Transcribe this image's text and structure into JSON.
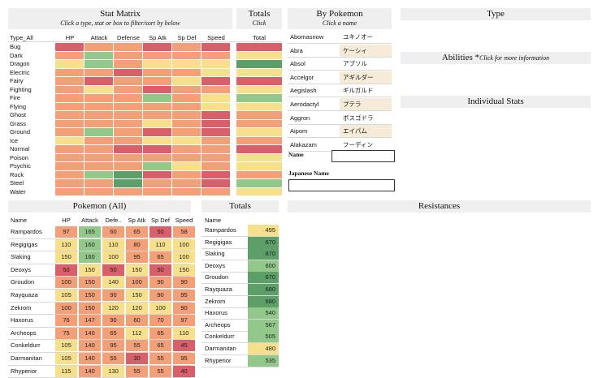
{
  "colors": {
    "red": "#d95f6b",
    "orange": "#f3a078",
    "yellow": "#f7e08c",
    "lightgreen": "#92c98a",
    "green": "#5c9f68"
  },
  "stat_matrix": {
    "title": "Stat Matrix",
    "subtitle": "Click a type, stat or box to filter/sort by below",
    "columns": [
      "Type_All",
      "HP",
      "Attack",
      "Defense",
      "Sp Atk",
      "Sp Def",
      "Speed"
    ],
    "rows": [
      {
        "type": "Bug",
        "cells": [
          "red",
          "orange",
          "orange",
          "red",
          "orange",
          "red"
        ]
      },
      {
        "type": "Dark",
        "cells": [
          "orange",
          "lightgreen",
          "orange",
          "orange",
          "orange",
          "orange"
        ]
      },
      {
        "type": "Dragon",
        "cells": [
          "yellow",
          "lightgreen",
          "orange",
          "yellow",
          "yellow",
          "yellow"
        ]
      },
      {
        "type": "Electric",
        "cells": [
          "orange",
          "orange",
          "red",
          "orange",
          "orange",
          "yellow"
        ]
      },
      {
        "type": "Fairy",
        "cells": [
          "orange",
          "red",
          "orange",
          "orange",
          "yellow",
          "red"
        ]
      },
      {
        "type": "Fighting",
        "cells": [
          "orange",
          "yellow",
          "orange",
          "red",
          "orange",
          "orange"
        ]
      },
      {
        "type": "Fire",
        "cells": [
          "orange",
          "orange",
          "orange",
          "lightgreen",
          "orange",
          "yellow"
        ]
      },
      {
        "type": "Flying",
        "cells": [
          "orange",
          "orange",
          "orange",
          "orange",
          "orange",
          "yellow"
        ]
      },
      {
        "type": "Ghost",
        "cells": [
          "orange",
          "orange",
          "orange",
          "orange",
          "orange",
          "red"
        ]
      },
      {
        "type": "Grass",
        "cells": [
          "orange",
          "orange",
          "orange",
          "yellow",
          "orange",
          "red"
        ]
      },
      {
        "type": "Ground",
        "cells": [
          "orange",
          "lightgreen",
          "orange",
          "red",
          "orange",
          "red"
        ]
      },
      {
        "type": "Ice",
        "cells": [
          "yellow",
          "orange",
          "orange",
          "yellow",
          "yellow",
          "orange"
        ]
      },
      {
        "type": "Normal",
        "cells": [
          "orange",
          "orange",
          "red",
          "red",
          "orange",
          "orange"
        ]
      },
      {
        "type": "Poison",
        "cells": [
          "orange",
          "orange",
          "orange",
          "orange",
          "orange",
          "orange"
        ]
      },
      {
        "type": "Psychic",
        "cells": [
          "orange",
          "orange",
          "orange",
          "lightgreen",
          "yellow",
          "orange"
        ]
      },
      {
        "type": "Rock",
        "cells": [
          "orange",
          "lightgreen",
          "green",
          "red",
          "orange",
          "red"
        ]
      },
      {
        "type": "Steel",
        "cells": [
          "orange",
          "orange",
          "green",
          "orange",
          "orange",
          "red"
        ]
      },
      {
        "type": "Water",
        "cells": [
          "orange",
          "orange",
          "orange",
          "orange",
          "orange",
          "orange"
        ]
      }
    ]
  },
  "totals_matrix": {
    "title": "Totals",
    "subtitle": "Click",
    "column": "Total",
    "cells": [
      "red",
      "yellow",
      "green",
      "yellow",
      "red",
      "yellow",
      "lightgreen",
      "yellow",
      "orange",
      "orange",
      "yellow",
      "orange",
      "red",
      "yellow",
      "yellow",
      "orange",
      "lightgreen",
      "yellow"
    ]
  },
  "by_pokemon": {
    "title": "By Pokemon",
    "subtitle": "Click a name",
    "rows": [
      {
        "en": "Abomasnow",
        "ja": "ユキノオー",
        "shade": false
      },
      {
        "en": "Abra",
        "ja": "ケーシィ",
        "shade": true
      },
      {
        "en": "Absol",
        "ja": "アブソル",
        "shade": false
      },
      {
        "en": "Accelgor",
        "ja": "アギルダー",
        "shade": true
      },
      {
        "en": "Aegislash",
        "ja": "ギルガルド",
        "shade": false
      },
      {
        "en": "Aerodactyl",
        "ja": "プテラ",
        "shade": true
      },
      {
        "en": "Aggron",
        "ja": "ボスゴドラ",
        "shade": false
      },
      {
        "en": "Aipom",
        "ja": "エイパム",
        "shade": true
      },
      {
        "en": "Alakazam",
        "ja": "フーディン",
        "shade": false
      }
    ],
    "name_label": "Name",
    "japanese_name_label": "Japanese Name",
    "name_value": "",
    "japanese_name_value": ""
  },
  "right_panel": {
    "type_title": "Type",
    "abilities_title": "Abilities *",
    "abilities_note": "Click for more information",
    "individual_stats_title": "Individual Stats",
    "resistances_title": "Resistances"
  },
  "pokemon_all": {
    "title": "Pokemon (All)",
    "columns": [
      "Name",
      "HP",
      "Attack",
      "Defe..",
      "Sp Atk",
      "Sp Def",
      "Speed"
    ],
    "rows": [
      {
        "name": "Rampardos",
        "stats": [
          97,
          165,
          60,
          65,
          50,
          58
        ],
        "colors": [
          "orange",
          "lightgreen",
          "orange",
          "orange",
          "red",
          "orange"
        ]
      },
      {
        "name": "Regigigas",
        "stats": [
          110,
          160,
          110,
          80,
          110,
          100
        ],
        "colors": [
          "yellow",
          "lightgreen",
          "yellow",
          "orange",
          "yellow",
          "yellow"
        ]
      },
      {
        "name": "Slaking",
        "stats": [
          150,
          160,
          100,
          95,
          65,
          100
        ],
        "colors": [
          "yellow",
          "lightgreen",
          "yellow",
          "orange",
          "orange",
          "yellow"
        ]
      },
      {
        "name": "Deoxys",
        "stats": [
          50,
          150,
          50,
          150,
          50,
          150
        ],
        "colors": [
          "red",
          "yellow",
          "red",
          "yellow",
          "red",
          "yellow"
        ]
      },
      {
        "name": "Groudon",
        "stats": [
          100,
          150,
          140,
          100,
          90,
          90
        ],
        "colors": [
          "orange",
          "orange",
          "yellow",
          "orange",
          "orange",
          "orange"
        ]
      },
      {
        "name": "Rayquaza",
        "stats": [
          105,
          150,
          90,
          150,
          90,
          95
        ],
        "colors": [
          "yellow",
          "orange",
          "orange",
          "yellow",
          "orange",
          "orange"
        ]
      },
      {
        "name": "Zekrom",
        "stats": [
          100,
          150,
          120,
          120,
          100,
          90
        ],
        "colors": [
          "orange",
          "orange",
          "yellow",
          "yellow",
          "yellow",
          "orange"
        ]
      },
      {
        "name": "Haxorus",
        "stats": [
          76,
          147,
          90,
          60,
          70,
          97
        ],
        "colors": [
          "orange",
          "orange",
          "orange",
          "orange",
          "orange",
          "orange"
        ]
      },
      {
        "name": "Archeops",
        "stats": [
          75,
          140,
          65,
          112,
          65,
          110
        ],
        "colors": [
          "orange",
          "orange",
          "orange",
          "yellow",
          "orange",
          "yellow"
        ]
      },
      {
        "name": "Conkeldurr",
        "stats": [
          105,
          140,
          95,
          55,
          65,
          45
        ],
        "colors": [
          "yellow",
          "orange",
          "orange",
          "orange",
          "orange",
          "red"
        ]
      },
      {
        "name": "Darmanitan",
        "stats": [
          105,
          140,
          55,
          30,
          55,
          95
        ],
        "colors": [
          "yellow",
          "orange",
          "orange",
          "red",
          "orange",
          "orange"
        ]
      },
      {
        "name": "Rhyperior",
        "stats": [
          115,
          140,
          130,
          55,
          55,
          40
        ],
        "colors": [
          "yellow",
          "orange",
          "yellow",
          "orange",
          "orange",
          "red"
        ]
      }
    ]
  },
  "totals_list": {
    "title": "Totals",
    "column": "Name",
    "rows": [
      {
        "name": "Rampardos",
        "total": 495,
        "color": "yellow"
      },
      {
        "name": "Regigigas",
        "total": 670,
        "color": "green"
      },
      {
        "name": "Slaking",
        "total": 670,
        "color": "green"
      },
      {
        "name": "Deoxys",
        "total": 600,
        "color": "lightgreen"
      },
      {
        "name": "Groudon",
        "total": 670,
        "color": "green"
      },
      {
        "name": "Rayquaza",
        "total": 680,
        "color": "green"
      },
      {
        "name": "Zekrom",
        "total": 680,
        "color": "green"
      },
      {
        "name": "Haxorus",
        "total": 540,
        "color": "lightgreen"
      },
      {
        "name": "Archeops",
        "total": 567,
        "color": "lightgreen"
      },
      {
        "name": "Conkeldurr",
        "total": 505,
        "color": "lightgreen"
      },
      {
        "name": "Darmanitan",
        "total": 480,
        "color": "yellow"
      },
      {
        "name": "Rhyperior",
        "total": 535,
        "color": "lightgreen"
      }
    ]
  }
}
